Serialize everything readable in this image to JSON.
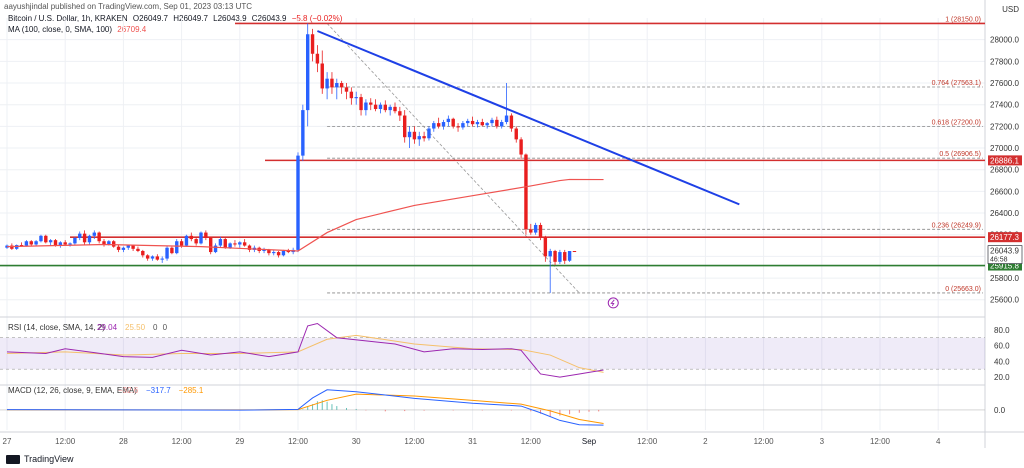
{
  "header": {
    "published_by": "aayushjindal published on TradingView.com, Sep 01, 2023 03:13 UTC",
    "symbol": "Bitcoin / U.S. Dollar, 1h, KRAKEN",
    "ohlc": {
      "o": "O26049.7",
      "h": "H26049.7",
      "l": "L26043.9",
      "c": "C26043.9",
      "chg": "−5.8 (−0.02%)"
    },
    "ma_label": "MA (100, close, 0, SMA, 100)",
    "ma_value": "26709.4"
  },
  "currency": "USD",
  "footer": {
    "logo_text": "TradingView"
  },
  "colors": {
    "up": "#2962ff",
    "down": "#e91e1e",
    "ma": "#ef5350",
    "trendline": "#1e40e6",
    "resistance": "#d32f2f",
    "support": "#2e7d32",
    "rsi": "#9c27b0",
    "rsi_ma": "#f5c06b",
    "macd": "#2962ff",
    "signal": "#ff9800",
    "grid": "#eef0f4",
    "axis_text": "#333333"
  },
  "chart_data": [
    {
      "type": "candlestick",
      "panel": "price",
      "title": "Bitcoin / U.S. Dollar, 1h, KRAKEN",
      "ylim": [
        25450,
        28200
      ],
      "yticks": [
        25600,
        25800,
        26000,
        26200,
        26400,
        26600,
        26800,
        27000,
        27200,
        27400,
        27600,
        27800,
        28000
      ],
      "xticks": [
        {
          "x": 0,
          "label": "27"
        },
        {
          "x": 12,
          "label": "12:00"
        },
        {
          "x": 24,
          "label": "28"
        },
        {
          "x": 36,
          "label": "12:00"
        },
        {
          "x": 48,
          "label": "29"
        },
        {
          "x": 60,
          "label": "12:00"
        },
        {
          "x": 72,
          "label": "30"
        },
        {
          "x": 84,
          "label": "12:00"
        },
        {
          "x": 96,
          "label": "31"
        },
        {
          "x": 108,
          "label": "12:00"
        },
        {
          "x": 120,
          "label": "Sep"
        },
        {
          "x": 132,
          "label": "12:00"
        },
        {
          "x": 144,
          "label": "2"
        },
        {
          "x": 156,
          "label": "12:00"
        },
        {
          "x": 168,
          "label": "3"
        },
        {
          "x": 180,
          "label": "12:00"
        },
        {
          "x": 192,
          "label": "4"
        }
      ],
      "candles_ohlc": [
        [
          26080,
          26110,
          26070,
          26100
        ],
        [
          26100,
          26120,
          26060,
          26070
        ],
        [
          26070,
          26110,
          26060,
          26105
        ],
        [
          26105,
          26130,
          26090,
          26100
        ],
        [
          26100,
          26150,
          26090,
          26140
        ],
        [
          26140,
          26150,
          26100,
          26110
        ],
        [
          26110,
          26150,
          26100,
          26140
        ],
        [
          26140,
          26200,
          26130,
          26190
        ],
        [
          26190,
          26200,
          26120,
          26130
        ],
        [
          26130,
          26160,
          26100,
          26150
        ],
        [
          26150,
          26160,
          26090,
          26100
        ],
        [
          26100,
          26140,
          26080,
          26130
        ],
        [
          26130,
          26150,
          26100,
          26110
        ],
        [
          26110,
          26130,
          26090,
          26120
        ],
        [
          26120,
          26180,
          26110,
          26170
        ],
        [
          26170,
          26230,
          26150,
          26210
        ],
        [
          26210,
          26240,
          26110,
          26130
        ],
        [
          26130,
          26200,
          26110,
          26190
        ],
        [
          26190,
          26240,
          26160,
          26220
        ],
        [
          26220,
          26230,
          26120,
          26140
        ],
        [
          26140,
          26160,
          26090,
          26110
        ],
        [
          26110,
          26150,
          26100,
          26140
        ],
        [
          26140,
          26150,
          26080,
          26090
        ],
        [
          26090,
          26110,
          26040,
          26060
        ],
        [
          26060,
          26090,
          26040,
          26080
        ],
        [
          26080,
          26110,
          26060,
          26100
        ],
        [
          26100,
          26110,
          26050,
          26070
        ],
        [
          26070,
          26090,
          26040,
          26050
        ],
        [
          26050,
          26060,
          25990,
          26010
        ],
        [
          26010,
          26020,
          25960,
          25980
        ],
        [
          25980,
          26010,
          25960,
          26000
        ],
        [
          26000,
          26020,
          25960,
          25970
        ],
        [
          25970,
          26000,
          25940,
          25980
        ],
        [
          25980,
          26100,
          25960,
          26080
        ],
        [
          26080,
          26090,
          26020,
          26030
        ],
        [
          26030,
          26160,
          26020,
          26140
        ],
        [
          26140,
          26160,
          26080,
          26100
        ],
        [
          26100,
          26200,
          26090,
          26190
        ],
        [
          26190,
          26220,
          26140,
          26160
        ],
        [
          26160,
          26180,
          26100,
          26120
        ],
        [
          26120,
          26230,
          26110,
          26220
        ],
        [
          26220,
          26240,
          26150,
          26170
        ],
        [
          26170,
          26180,
          26020,
          26040
        ],
        [
          26040,
          26120,
          26030,
          26100
        ],
        [
          26100,
          26180,
          26080,
          26160
        ],
        [
          26160,
          26170,
          26070,
          26080
        ],
        [
          26080,
          26130,
          26070,
          26120
        ],
        [
          26120,
          26150,
          26090,
          26110
        ],
        [
          26110,
          26140,
          26080,
          26130
        ],
        [
          26130,
          26160,
          26090,
          26100
        ],
        [
          26100,
          26110,
          26040,
          26060
        ],
        [
          26060,
          26100,
          26040,
          26080
        ],
        [
          26080,
          26090,
          26030,
          26050
        ],
        [
          26050,
          26080,
          26030,
          26060
        ],
        [
          26060,
          26070,
          26010,
          26030
        ],
        [
          26030,
          26060,
          26010,
          26040
        ],
        [
          26040,
          26050,
          25990,
          26010
        ],
        [
          26010,
          26060,
          26000,
          26050
        ],
        [
          26050,
          26070,
          26030,
          26040
        ],
        [
          26040,
          26080,
          26020,
          26060
        ],
        [
          26060,
          26960,
          26040,
          26930
        ],
        [
          26930,
          27400,
          26880,
          27350
        ],
        [
          27350,
          28150,
          27200,
          28050
        ],
        [
          28050,
          28100,
          27800,
          27870
        ],
        [
          27870,
          27950,
          27700,
          27780
        ],
        [
          27780,
          27900,
          27500,
          27550
        ],
        [
          27550,
          27700,
          27450,
          27640
        ],
        [
          27640,
          27700,
          27500,
          27560
        ],
        [
          27560,
          27640,
          27450,
          27600
        ],
        [
          27600,
          27620,
          27500,
          27560
        ],
        [
          27560,
          27600,
          27450,
          27520
        ],
        [
          27520,
          27560,
          27400,
          27460
        ],
        [
          27460,
          27520,
          27400,
          27470
        ],
        [
          27470,
          27500,
          27300,
          27350
        ],
        [
          27350,
          27450,
          27300,
          27420
        ],
        [
          27420,
          27460,
          27350,
          27400
        ],
        [
          27400,
          27450,
          27340,
          27360
        ],
        [
          27360,
          27420,
          27320,
          27400
        ],
        [
          27400,
          27440,
          27330,
          27350
        ],
        [
          27350,
          27400,
          27300,
          27380
        ],
        [
          27380,
          27420,
          27320,
          27340
        ],
        [
          27340,
          27380,
          27250,
          27300
        ],
        [
          27300,
          27350,
          27050,
          27100
        ],
        [
          27100,
          27200,
          27000,
          27150
        ],
        [
          27150,
          27200,
          27040,
          27080
        ],
        [
          27080,
          27150,
          27020,
          27110
        ],
        [
          27110,
          27150,
          27060,
          27090
        ],
        [
          27090,
          27200,
          27070,
          27180
        ],
        [
          27180,
          27250,
          27150,
          27230
        ],
        [
          27230,
          27280,
          27180,
          27200
        ],
        [
          27200,
          27260,
          27170,
          27240
        ],
        [
          27240,
          27300,
          27200,
          27270
        ],
        [
          27270,
          27280,
          27180,
          27200
        ],
        [
          27200,
          27230,
          27150,
          27190
        ],
        [
          27190,
          27250,
          27170,
          27230
        ],
        [
          27230,
          27270,
          27200,
          27250
        ],
        [
          27250,
          27290,
          27200,
          27220
        ],
        [
          27220,
          27260,
          27190,
          27240
        ],
        [
          27240,
          27270,
          27200,
          27210
        ],
        [
          27210,
          27240,
          27180,
          27230
        ],
        [
          27230,
          27280,
          27200,
          27260
        ],
        [
          27260,
          27290,
          27180,
          27200
        ],
        [
          27200,
          27260,
          27180,
          27240
        ],
        [
          27240,
          27600,
          27220,
          27300
        ],
        [
          27300,
          27320,
          27150,
          27180
        ],
        [
          27180,
          27200,
          27050,
          27080
        ],
        [
          27080,
          27100,
          26900,
          26940
        ],
        [
          26940,
          26950,
          26200,
          26250
        ],
        [
          26250,
          26300,
          26200,
          26220
        ],
        [
          26220,
          26310,
          26200,
          26290
        ],
        [
          26290,
          26310,
          26150,
          26180
        ],
        [
          26180,
          26190,
          25950,
          26000
        ],
        [
          26000,
          26070,
          25663,
          26050
        ],
        [
          26050,
          26060,
          25920,
          25950
        ],
        [
          25950,
          26060,
          25930,
          26040
        ],
        [
          26040,
          26060,
          25930,
          25960
        ],
        [
          25960,
          26049.7,
          25950,
          26049.7
        ],
        [
          26049.7,
          26049.7,
          26043.9,
          26043.9
        ]
      ],
      "ma_points": [
        [
          0,
          26090
        ],
        [
          20,
          26110
        ],
        [
          40,
          26090
        ],
        [
          60,
          26050
        ],
        [
          66,
          26220
        ],
        [
          72,
          26340
        ],
        [
          84,
          26470
        ],
        [
          96,
          26560
        ],
        [
          108,
          26650
        ],
        [
          114,
          26700
        ],
        [
          116,
          26710
        ],
        [
          123,
          26709
        ]
      ],
      "trendline": [
        [
          64,
          28080
        ],
        [
          151,
          26480
        ]
      ],
      "fib_levels": [
        {
          "ratio": "1",
          "price": 28150.0,
          "label": "1 (28150.0)"
        },
        {
          "ratio": "0.764",
          "price": 27563.1,
          "label": "0.764 (27563.1)"
        },
        {
          "ratio": "0.618",
          "price": 27200.0,
          "label": "0.618 (27200.0)"
        },
        {
          "ratio": "0.5",
          "price": 26906.5,
          "label": "0.5 (26906.5)"
        },
        {
          "ratio": "0.236",
          "price": 26249.9,
          "label": "0.236 (26249.9)"
        },
        {
          "ratio": "0",
          "price": 25663.0,
          "label": "0 (25663.0)"
        }
      ],
      "horizontal_levels": [
        {
          "price": 26886.1,
          "label": "26886.1",
          "color": "#d32f2f"
        },
        {
          "price": 26177.3,
          "label": "26177.3",
          "color": "#d32f2f"
        },
        {
          "price": 25915.8,
          "label": "25915.8",
          "color": "#2e7d32"
        }
      ],
      "last_price": {
        "price": 26043.9,
        "label": "26043.9",
        "countdown": "46:58"
      }
    },
    {
      "type": "line",
      "panel": "rsi",
      "title": "RSI (14, close, SMA, 14, 2)",
      "values_text": [
        "29.04",
        "25.50",
        "0",
        "0"
      ],
      "ylim": [
        10,
        95
      ],
      "yticks": [
        20,
        40,
        60,
        80
      ],
      "band": [
        30,
        70
      ],
      "rsi": [
        [
          0,
          52
        ],
        [
          8,
          50
        ],
        [
          12,
          56
        ],
        [
          18,
          51
        ],
        [
          24,
          46
        ],
        [
          30,
          45
        ],
        [
          36,
          54
        ],
        [
          42,
          48
        ],
        [
          48,
          52
        ],
        [
          54,
          46
        ],
        [
          60,
          52
        ],
        [
          62,
          85
        ],
        [
          64,
          88
        ],
        [
          68,
          70
        ],
        [
          74,
          66
        ],
        [
          80,
          62
        ],
        [
          86,
          52
        ],
        [
          92,
          56
        ],
        [
          98,
          55
        ],
        [
          104,
          56
        ],
        [
          106,
          54
        ],
        [
          110,
          24
        ],
        [
          114,
          20
        ],
        [
          118,
          24
        ],
        [
          120,
          26
        ],
        [
          123,
          29
        ]
      ],
      "rsi_ma": [
        [
          0,
          50
        ],
        [
          12,
          52
        ],
        [
          24,
          48
        ],
        [
          36,
          50
        ],
        [
          48,
          50
        ],
        [
          60,
          52
        ],
        [
          66,
          68
        ],
        [
          72,
          73
        ],
        [
          84,
          62
        ],
        [
          96,
          56
        ],
        [
          106,
          55
        ],
        [
          112,
          48
        ],
        [
          118,
          32
        ],
        [
          123,
          26
        ]
      ]
    },
    {
      "type": "bar",
      "panel": "macd",
      "title": "MACD (12, 26, close, 9, EMA, EMA)",
      "values_text": [
        "−32.6",
        "−317.7",
        "−285.1"
      ],
      "ylim": [
        -420,
        520
      ],
      "yticks": [
        0
      ],
      "macd": [
        [
          0,
          5
        ],
        [
          24,
          0
        ],
        [
          48,
          -5
        ],
        [
          60,
          10
        ],
        [
          63,
          250
        ],
        [
          66,
          420
        ],
        [
          72,
          380
        ],
        [
          84,
          240
        ],
        [
          96,
          140
        ],
        [
          106,
          80
        ],
        [
          110,
          -60
        ],
        [
          114,
          -220
        ],
        [
          118,
          -310
        ],
        [
          123,
          -318
        ]
      ],
      "signal": [
        [
          0,
          2
        ],
        [
          48,
          0
        ],
        [
          60,
          5
        ],
        [
          66,
          200
        ],
        [
          72,
          330
        ],
        [
          84,
          290
        ],
        [
          96,
          200
        ],
        [
          106,
          120
        ],
        [
          112,
          -20
        ],
        [
          118,
          -200
        ],
        [
          123,
          -285
        ]
      ],
      "hist_points": [
        [
          61,
          10
        ],
        [
          62,
          60
        ],
        [
          63,
          120
        ],
        [
          64,
          180
        ],
        [
          65,
          200
        ],
        [
          66,
          170
        ],
        [
          67,
          120
        ],
        [
          68,
          80
        ],
        [
          70,
          40
        ],
        [
          72,
          20
        ],
        [
          74,
          -10
        ],
        [
          78,
          -30
        ],
        [
          82,
          -25
        ],
        [
          86,
          -15
        ],
        [
          92,
          -10
        ],
        [
          98,
          -8
        ],
        [
          104,
          -12
        ],
        [
          108,
          -30
        ],
        [
          110,
          -80
        ],
        [
          112,
          -140
        ],
        [
          114,
          -120
        ],
        [
          116,
          -90
        ],
        [
          118,
          -60
        ],
        [
          120,
          -40
        ],
        [
          122,
          -32
        ]
      ]
    }
  ]
}
